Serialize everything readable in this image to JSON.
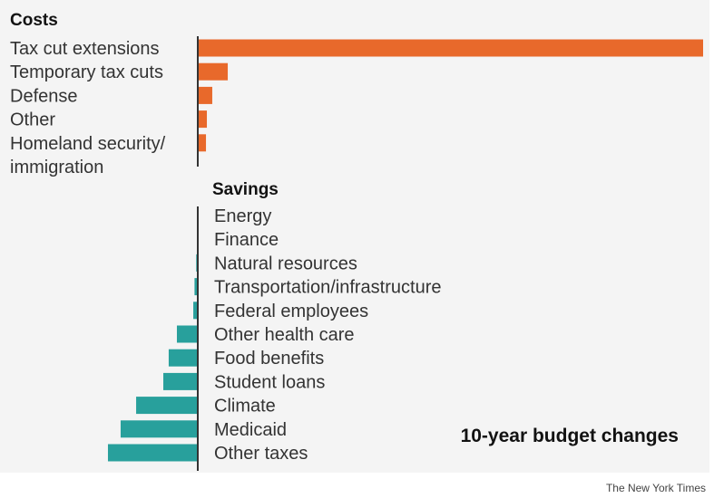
{
  "chart_data": {
    "type": "bar",
    "title": "10-year budget changes",
    "colors": {
      "costs": "#e8692b",
      "savings": "#28a09c"
    },
    "groups": [
      {
        "name": "Costs",
        "categories": [
          "Tax cut extensions",
          "Temporary tax cuts",
          "Defense",
          "Other",
          "Homeland security/ immigration"
        ],
        "values": [
          4500,
          267,
          129,
          81,
          73
        ]
      },
      {
        "name": "Savings",
        "categories": [
          "Energy",
          "Finance",
          "Natural resources",
          "Transportation/infrastructure",
          "Federal employees",
          "Other health care",
          "Food benefits",
          "Student loans",
          "Climate",
          "Medicaid",
          "Other taxes"
        ],
        "values": [
          0,
          -3,
          -14,
          -29,
          -40,
          -186,
          -259,
          -307,
          -549,
          -687,
          -800
        ]
      }
    ],
    "axis_labels_shown": false,
    "grid": false
  },
  "credit": "The New York Times"
}
